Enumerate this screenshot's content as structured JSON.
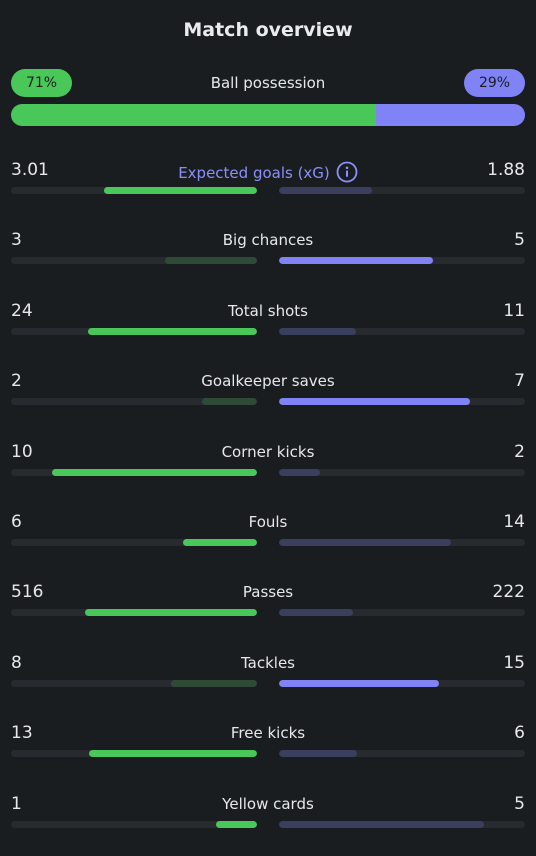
{
  "title": "Match overview",
  "colors": {
    "home_strong": "#4ac759",
    "home_weak": "#2f4a37",
    "away_strong": "#7f83f5",
    "away_weak": "#3a3f5e"
  },
  "possession": {
    "label": "Ball possession",
    "home_text": "71%",
    "away_text": "29%",
    "home": 71,
    "away": 29
  },
  "stats": [
    {
      "label": "Expected goals (xG)",
      "home": "3.01",
      "away": "1.88",
      "home_share": 0.62,
      "away_share": 0.38,
      "leader": "home",
      "accent": true,
      "icon": "info-icon"
    },
    {
      "label": "Big chances",
      "home": "3",
      "away": "5",
      "home_share": 0.375,
      "away_share": 0.625,
      "leader": "away"
    },
    {
      "label": "Total shots",
      "home": "24",
      "away": "11",
      "home_share": 0.686,
      "away_share": 0.314,
      "leader": "home"
    },
    {
      "label": "Goalkeeper saves",
      "home": "2",
      "away": "7",
      "home_share": 0.222,
      "away_share": 0.778,
      "leader": "away"
    },
    {
      "label": "Corner kicks",
      "home": "10",
      "away": "2",
      "home_share": 0.833,
      "away_share": 0.167,
      "leader": "home"
    },
    {
      "label": "Fouls",
      "home": "6",
      "away": "14",
      "home_share": 0.3,
      "away_share": 0.7,
      "leader": "home"
    },
    {
      "label": "Passes",
      "home": "516",
      "away": "222",
      "home_share": 0.699,
      "away_share": 0.301,
      "leader": "home"
    },
    {
      "label": "Tackles",
      "home": "8",
      "away": "15",
      "home_share": 0.348,
      "away_share": 0.652,
      "leader": "away"
    },
    {
      "label": "Free kicks",
      "home": "13",
      "away": "6",
      "home_share": 0.684,
      "away_share": 0.316,
      "leader": "home"
    },
    {
      "label": "Yellow cards",
      "home": "1",
      "away": "5",
      "home_share": 0.167,
      "away_share": 0.833,
      "leader": "home"
    }
  ]
}
